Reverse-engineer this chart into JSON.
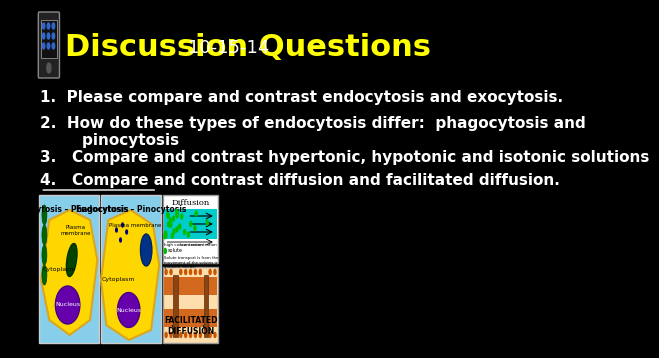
{
  "background_color": "#000000",
  "title_text": "Discussion Questions",
  "title_color": "#FFFF00",
  "title_fontsize": 22,
  "date_text": "10-15-14",
  "date_color": "#FFFFFF",
  "date_fontsize": 13,
  "questions": [
    "1.  Please compare and contrast endocytosis and exocytosis.",
    "2.  How do these types of endocytosis differ:  phagocytosis and\n        pinocytosis",
    "3.   Compare and contrast hypertonic, hypotonic and isotonic solutions",
    "4.   Compare and contrast diffusion and facilitated diffusion."
  ],
  "q_colors": [
    "#FFFFFF",
    "#FFFFFF",
    "#FFFFFF",
    "#FFFFFF"
  ],
  "q_underline": [
    false,
    false,
    false,
    true
  ],
  "q_fontsize": 11,
  "q_bold": true
}
